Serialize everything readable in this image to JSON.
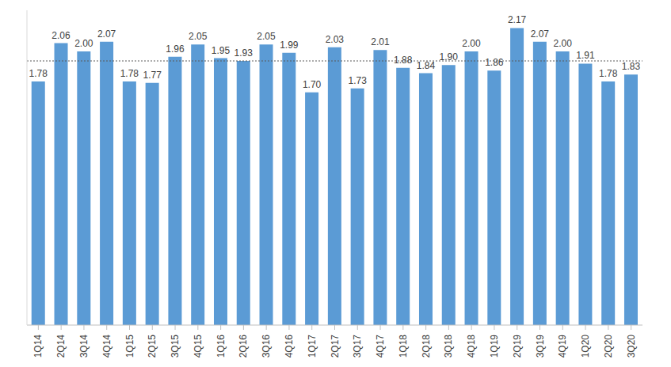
{
  "chart_data": {
    "type": "bar",
    "categories": [
      "1Q14",
      "2Q14",
      "3Q14",
      "4Q14",
      "1Q15",
      "2Q15",
      "3Q15",
      "4Q15",
      "1Q16",
      "2Q16",
      "3Q16",
      "4Q16",
      "1Q17",
      "2Q17",
      "3Q17",
      "4Q17",
      "1Q18",
      "2Q18",
      "3Q18",
      "4Q18",
      "1Q19",
      "2Q19",
      "3Q19",
      "4Q19",
      "1Q20",
      "2Q20",
      "3Q20"
    ],
    "values": [
      1.78,
      2.06,
      2.0,
      2.07,
      1.78,
      1.77,
      1.96,
      2.05,
      1.95,
      1.93,
      2.05,
      1.99,
      1.7,
      2.03,
      1.73,
      2.01,
      1.88,
      1.84,
      1.9,
      2.0,
      1.86,
      2.17,
      2.07,
      2.0,
      1.91,
      1.78,
      1.83
    ],
    "value_labels": [
      "1.78",
      "2.06",
      "2.00",
      "2.07",
      "1.78",
      "1.77",
      "1.96",
      "2.05",
      "1.95",
      "1.93",
      "2.05",
      "1.99",
      "1.70",
      "2.03",
      "1.73",
      "2.01",
      "1.88",
      "1.84",
      "1.90",
      "2.00",
      "1.86",
      "2.17",
      "2.07",
      "2.00",
      "1.91",
      "1.78",
      "1.83"
    ],
    "reference_line": 1.93,
    "color": "#5b9bd5",
    "ylim": [
      0,
      2.3
    ],
    "yticks": [],
    "grid": false,
    "data_labels": true,
    "tick_labels": "x"
  }
}
